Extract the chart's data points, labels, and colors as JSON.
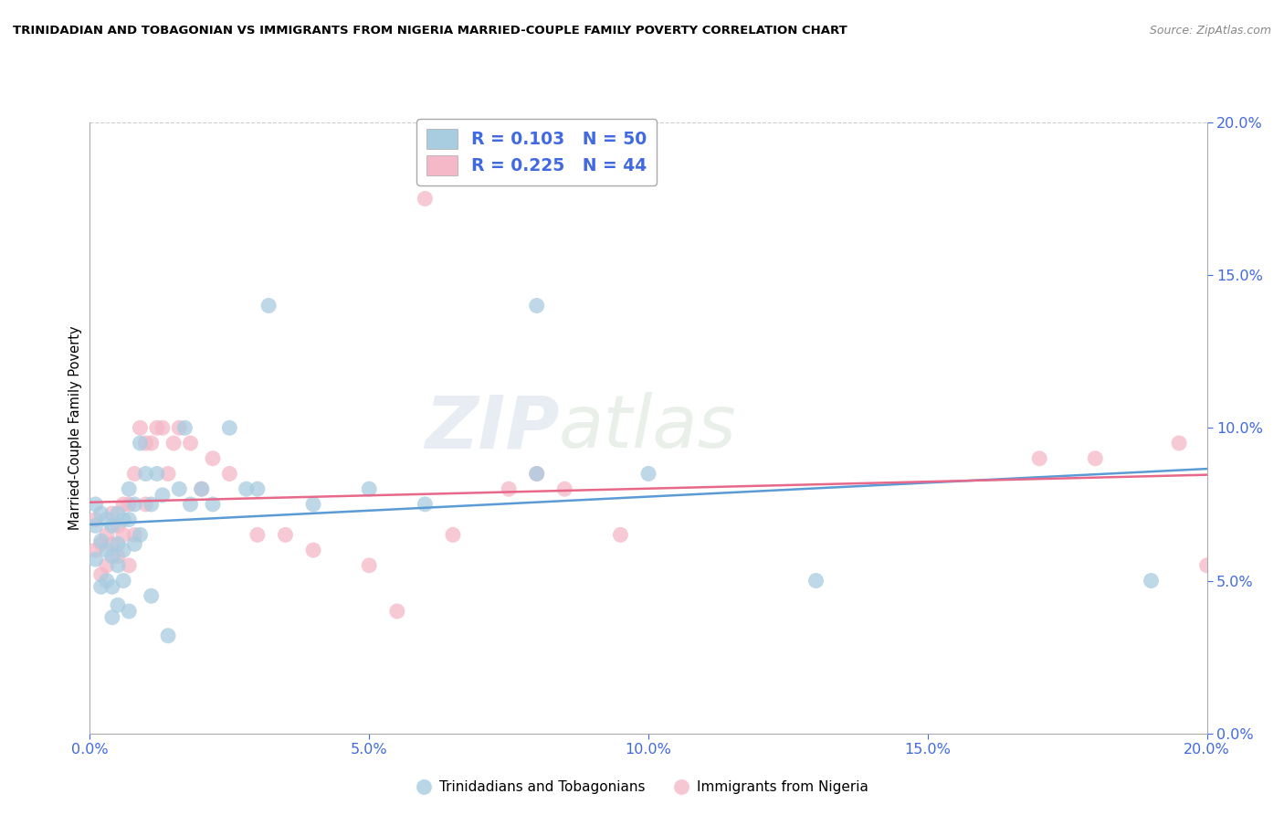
{
  "title": "TRINIDADIAN AND TOBAGONIAN VS IMMIGRANTS FROM NIGERIA MARRIED-COUPLE FAMILY POVERTY CORRELATION CHART",
  "source": "Source: ZipAtlas.com",
  "ylabel": "Married-Couple Family Poverty",
  "legend_label1": "R = 0.103   N = 50",
  "legend_label2": "R = 0.225   N = 44",
  "blue_color": "#a8cce0",
  "pink_color": "#f4b8c8",
  "blue_line_color": "#5b9bd5",
  "pink_line_color": "#e8688a",
  "background_color": "#ffffff",
  "grid_color": "#cccccc",
  "title_color": "#000000",
  "axis_label_color": "#4169e1",
  "xlim": [
    0.0,
    0.2
  ],
  "ylim": [
    0.0,
    0.2
  ],
  "blue_scatter_x": [
    0.001,
    0.001,
    0.001,
    0.002,
    0.002,
    0.002,
    0.003,
    0.003,
    0.003,
    0.004,
    0.004,
    0.004,
    0.004,
    0.005,
    0.005,
    0.005,
    0.005,
    0.006,
    0.006,
    0.006,
    0.007,
    0.007,
    0.007,
    0.008,
    0.008,
    0.009,
    0.009,
    0.01,
    0.011,
    0.011,
    0.012,
    0.013,
    0.014,
    0.016,
    0.017,
    0.018,
    0.02,
    0.022,
    0.025,
    0.028,
    0.03,
    0.032,
    0.04,
    0.05,
    0.06,
    0.08,
    0.08,
    0.1,
    0.13,
    0.19
  ],
  "blue_scatter_y": [
    0.075,
    0.068,
    0.057,
    0.072,
    0.063,
    0.048,
    0.07,
    0.06,
    0.05,
    0.068,
    0.058,
    0.048,
    0.038,
    0.072,
    0.062,
    0.055,
    0.042,
    0.07,
    0.06,
    0.05,
    0.08,
    0.07,
    0.04,
    0.075,
    0.062,
    0.095,
    0.065,
    0.085,
    0.075,
    0.045,
    0.085,
    0.078,
    0.032,
    0.08,
    0.1,
    0.075,
    0.08,
    0.075,
    0.1,
    0.08,
    0.08,
    0.14,
    0.075,
    0.08,
    0.075,
    0.085,
    0.14,
    0.085,
    0.05,
    0.05
  ],
  "pink_scatter_x": [
    0.001,
    0.001,
    0.002,
    0.002,
    0.003,
    0.003,
    0.004,
    0.004,
    0.005,
    0.005,
    0.006,
    0.006,
    0.007,
    0.007,
    0.008,
    0.008,
    0.009,
    0.01,
    0.01,
    0.011,
    0.012,
    0.013,
    0.014,
    0.015,
    0.016,
    0.018,
    0.02,
    0.022,
    0.025,
    0.03,
    0.035,
    0.04,
    0.05,
    0.055,
    0.06,
    0.065,
    0.075,
    0.08,
    0.085,
    0.095,
    0.17,
    0.18,
    0.195,
    0.2
  ],
  "pink_scatter_y": [
    0.07,
    0.06,
    0.062,
    0.052,
    0.065,
    0.055,
    0.072,
    0.062,
    0.068,
    0.058,
    0.075,
    0.065,
    0.075,
    0.055,
    0.085,
    0.065,
    0.1,
    0.095,
    0.075,
    0.095,
    0.1,
    0.1,
    0.085,
    0.095,
    0.1,
    0.095,
    0.08,
    0.09,
    0.085,
    0.065,
    0.065,
    0.06,
    0.055,
    0.04,
    0.175,
    0.065,
    0.08,
    0.085,
    0.08,
    0.065,
    0.09,
    0.09,
    0.095,
    0.055
  ]
}
